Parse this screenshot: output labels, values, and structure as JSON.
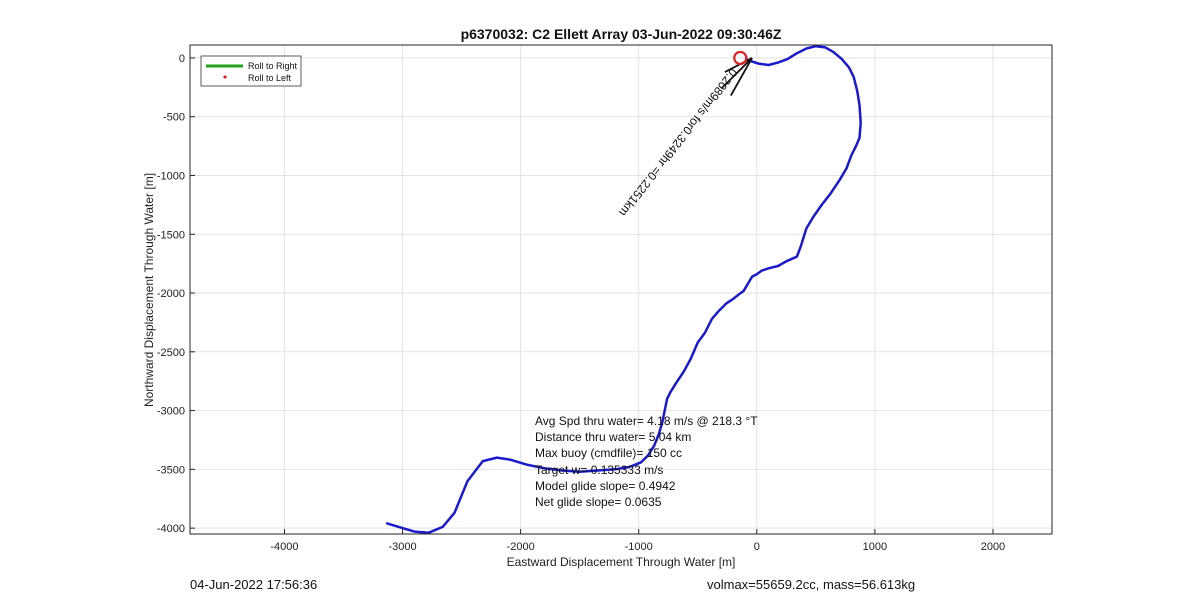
{
  "chart_data": {
    "type": "line",
    "title": "p6370032: C2 Ellett Array 03-Jun-2022 09:30:46Z",
    "xlabel": "Eastward Displacement Through Water [m]",
    "ylabel": "Northward Displacement Through Water [m]",
    "xlim": [
      -4800,
      2500
    ],
    "ylim": [
      -4050,
      110
    ],
    "xticks": [
      -4000,
      -3000,
      -2000,
      -1000,
      0,
      1000,
      2000
    ],
    "yticks": [
      0,
      -500,
      -1000,
      -1500,
      -2000,
      -2500,
      -3000,
      -3500,
      -4000
    ],
    "grid": true,
    "legend": {
      "placement": "top-left",
      "entries": [
        {
          "label": "Roll to Right",
          "color": "#22a022",
          "marker": "line"
        },
        {
          "label": "Roll to Left",
          "color": "#dd2222",
          "marker": "dot"
        }
      ]
    },
    "series": [
      {
        "color": "#1a1acc",
        "x": [
          -3130,
          -3000,
          -2900,
          -2780,
          -2660,
          -2560,
          -2450,
          -2320,
          -2200,
          -2080,
          -1950,
          -1800,
          -1650,
          -1500,
          -1350,
          -1200,
          -1080,
          -980,
          -920,
          -870,
          -830,
          -800,
          -780,
          -760,
          -730,
          -680,
          -620,
          -560,
          -500,
          -440,
          -380,
          -320,
          -260,
          -200,
          -150,
          -110,
          -80,
          -40,
          0,
          40,
          100,
          180,
          250,
          340,
          370,
          420,
          480,
          550,
          620,
          700,
          760,
          800,
          840,
          870,
          880,
          870,
          850,
          820,
          780,
          720,
          650,
          580,
          500,
          420,
          340,
          260,
          180,
          100,
          20,
          -40,
          -80,
          -90
        ],
        "y": [
          -3960,
          -4000,
          -4030,
          -4040,
          -3990,
          -3870,
          -3600,
          -3430,
          -3400,
          -3420,
          -3460,
          -3490,
          -3510,
          -3520,
          -3510,
          -3500,
          -3480,
          -3440,
          -3380,
          -3300,
          -3200,
          -3100,
          -3000,
          -2900,
          -2840,
          -2760,
          -2670,
          -2560,
          -2420,
          -2340,
          -2220,
          -2150,
          -2090,
          -2050,
          -2010,
          -1980,
          -1930,
          -1860,
          -1840,
          -1810,
          -1790,
          -1770,
          -1730,
          -1690,
          -1610,
          -1450,
          -1350,
          -1250,
          -1160,
          -1040,
          -940,
          -830,
          -750,
          -680,
          -550,
          -400,
          -280,
          -160,
          -80,
          -10,
          50,
          90,
          100,
          80,
          40,
          -10,
          -40,
          -60,
          -50,
          -30,
          -20,
          0
        ]
      }
    ],
    "start_marker": {
      "x": -140,
      "y": 0,
      "color": "#dd2222"
    },
    "annotations": {
      "stats": [
        "Avg Spd thru water=  4.18 m/s @ 218.3 °T",
        "Distance thru water=  5.04 km",
        "Max buoy (cmdfile)= 150 cc",
        "Target w= 0.135333 m/s",
        "Model glide slope= 0.4942",
        "Net glide slope= 0.0635"
      ],
      "current_label": "0.2089m/s for0.3249hr =0.2251km"
    }
  },
  "footer": {
    "left": "04-Jun-2022 17:56:36",
    "right": "volmax=55659.2cc, mass=56.613kg"
  }
}
